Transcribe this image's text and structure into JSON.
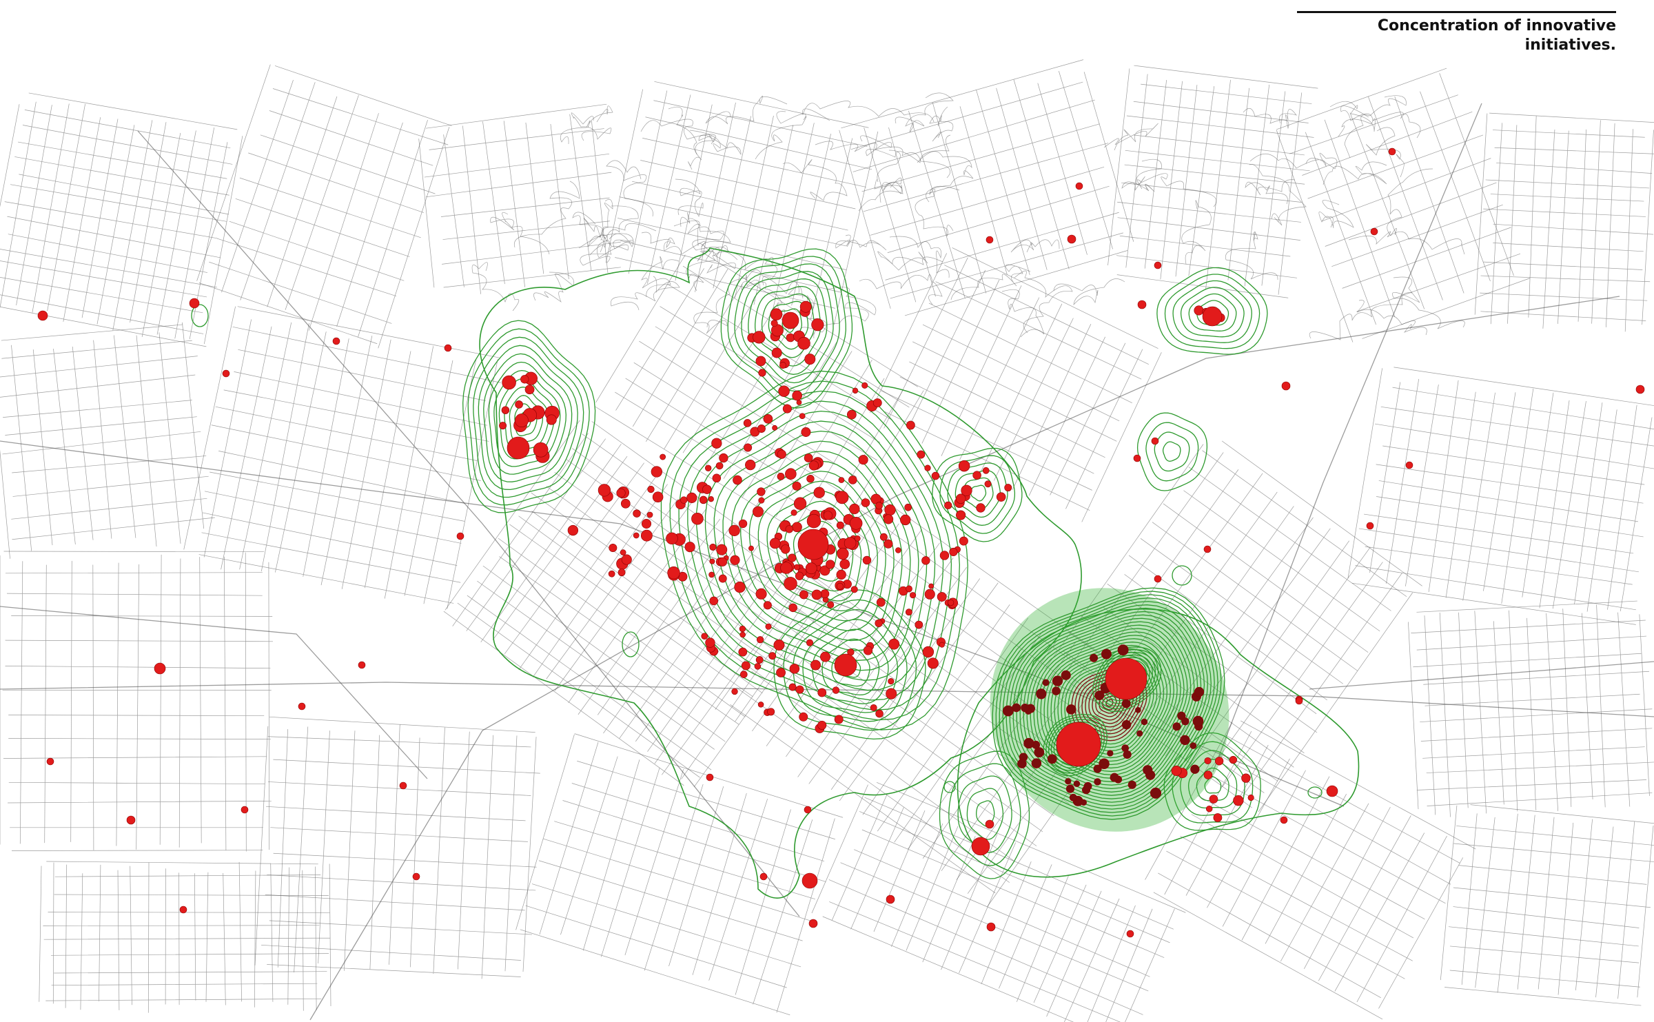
{
  "title": "Concentration of innovative\ninitiatives.",
  "colors": {
    "background": "#ffffff",
    "street": "#4a4a4a",
    "contour": "#2e9a2e",
    "contour_fill": "#35b335",
    "initiative": "#e21b1b",
    "initiative_dense": "#7a0d0d"
  },
  "map_data": {
    "type": "kernel-density map of initiative locations over street network",
    "contour_levels": 24,
    "initiative_marker": "red dot",
    "clusters_shown": 9
  }
}
